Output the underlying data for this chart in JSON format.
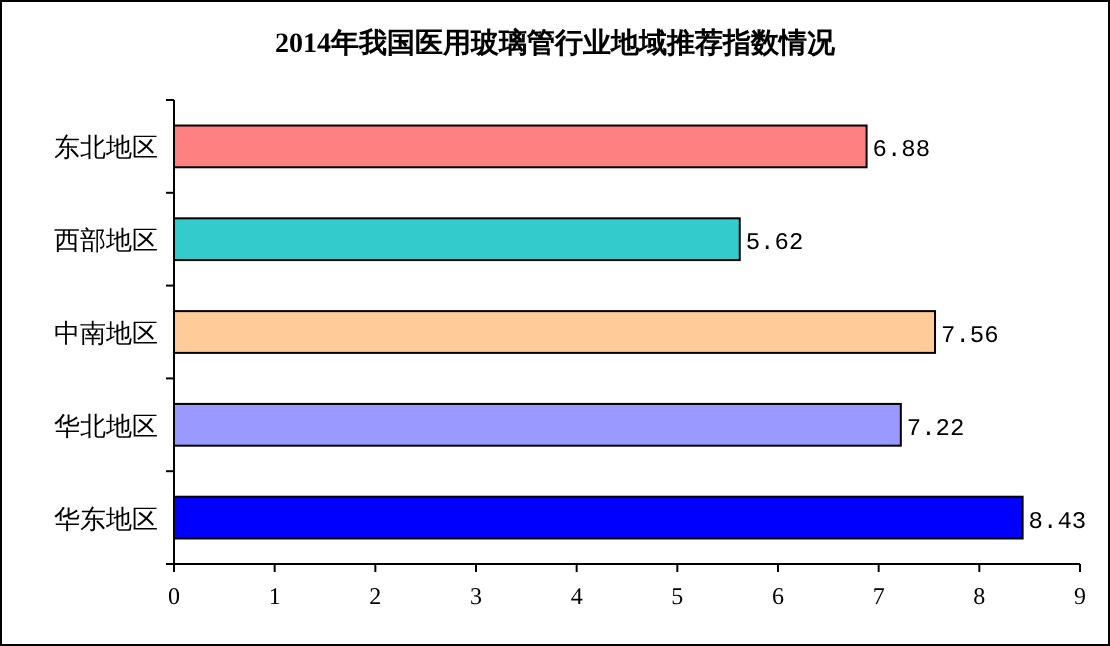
{
  "chart_data": {
    "type": "bar",
    "orientation": "horizontal",
    "title": "2014年我国医用玻璃管行业地域推荐指数情况",
    "categories": [
      "东北地区",
      "西部地区",
      "中南地区",
      "华北地区",
      "华东地区"
    ],
    "values": [
      6.88,
      5.62,
      7.56,
      7.22,
      8.43
    ],
    "colors": [
      "#ff8080",
      "#33cccc",
      "#ffcc99",
      "#9999ff",
      "#0000ff"
    ],
    "xlim": [
      0,
      9
    ],
    "xticks": [
      0,
      1,
      2,
      3,
      4,
      5,
      6,
      7,
      8,
      9
    ],
    "data_labels": true
  }
}
